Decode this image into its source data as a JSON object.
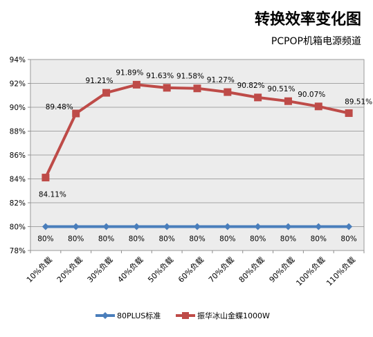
{
  "chart_data": {
    "type": "line",
    "title": "转换效率变化图",
    "subtitle": "PCPOP机箱电源频道",
    "categories": [
      "10%负载",
      "20%负载",
      "30%负载",
      "40%负载",
      "50%负载",
      "60%负载",
      "70%负载",
      "80%负载",
      "90%负载",
      "100%负载",
      "110%负载"
    ],
    "y_ticks": [
      "78%",
      "80%",
      "82%",
      "84%",
      "86%",
      "88%",
      "90%",
      "92%",
      "94%"
    ],
    "ylim": [
      78,
      94
    ],
    "grid": true,
    "legend_position": "bottom",
    "series": [
      {
        "name": "80PLUS标准",
        "color": "#4a7ebb",
        "marker": "diamond",
        "values": [
          80,
          80,
          80,
          80,
          80,
          80,
          80,
          80,
          80,
          80,
          80
        ],
        "labels": [
          "80%",
          "80%",
          "80%",
          "80%",
          "80%",
          "80%",
          "80%",
          "80%",
          "80%",
          "80%",
          "80%"
        ]
      },
      {
        "name": "振华冰山金蝶1000W",
        "color": "#be4b48",
        "marker": "square",
        "values": [
          84.11,
          89.48,
          91.21,
          91.89,
          91.63,
          91.58,
          91.27,
          90.82,
          90.51,
          90.07,
          89.51
        ],
        "labels": [
          "84.11%",
          "89.48%",
          "91.21%",
          "91.89%",
          "91.63%",
          "91.58%",
          "91.27%",
          "90.82%",
          "90.51%",
          "90.07%",
          "89.51%"
        ]
      }
    ]
  }
}
